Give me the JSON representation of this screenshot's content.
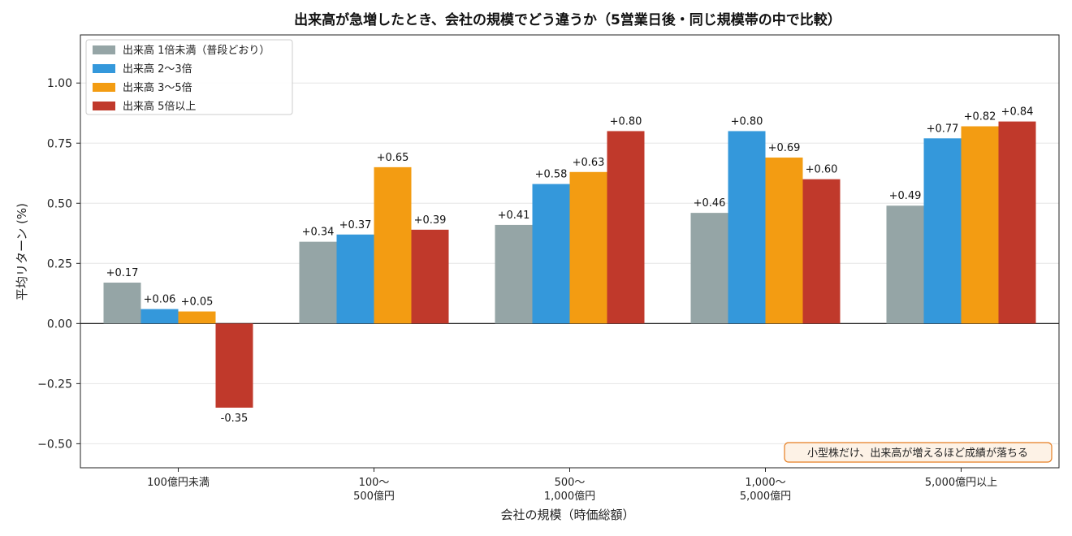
{
  "chart_data": {
    "type": "bar",
    "title": "出来高が急増したとき、会社の規模でどう違うか（5営業日後・同じ規模帯の中で比較）",
    "xlabel": "会社の規模（時価総額）",
    "ylabel": "平均リターン (%)",
    "ylim": [
      -0.6,
      1.2
    ],
    "yticks": [
      -0.5,
      -0.25,
      0.0,
      0.25,
      0.5,
      0.75,
      1.0
    ],
    "ytick_labels": [
      "−0.50",
      "−0.25",
      "0.00",
      "0.25",
      "0.50",
      "0.75",
      "1.00"
    ],
    "grid": "horizontal",
    "legend_position": "top-left",
    "categories": [
      [
        "100億円未満"
      ],
      [
        "100〜",
        "500億円"
      ],
      [
        "500〜",
        "1,000億円"
      ],
      [
        "1,000〜",
        "5,000億円"
      ],
      [
        "5,000億円以上"
      ]
    ],
    "series": [
      {
        "name": "出来高 1倍未満（普段どおり）",
        "color": "#95a5a6",
        "values": [
          0.17,
          0.34,
          0.41,
          0.46,
          0.49
        ],
        "labels": [
          "+0.17",
          "+0.34",
          "+0.41",
          "+0.46",
          "+0.49"
        ]
      },
      {
        "name": "出来高 2〜3倍",
        "color": "#3498db",
        "values": [
          0.06,
          0.37,
          0.58,
          0.8,
          0.77
        ],
        "labels": [
          "+0.06",
          "+0.37",
          "+0.58",
          "+0.80",
          "+0.77"
        ]
      },
      {
        "name": "出来高 3〜5倍",
        "color": "#f39c12",
        "values": [
          0.05,
          0.65,
          0.63,
          0.69,
          0.82
        ],
        "labels": [
          "+0.05",
          "+0.65",
          "+0.63",
          "+0.69",
          "+0.82"
        ]
      },
      {
        "name": "出来高 5倍以上",
        "color": "#c0392b",
        "values": [
          -0.35,
          0.39,
          0.8,
          0.6,
          0.84
        ],
        "labels": [
          "-0.35",
          "+0.39",
          "+0.80",
          "+0.60",
          "+0.84"
        ]
      }
    ],
    "annotation": "小型株だけ、出来高が増えるほど成績が落ちる",
    "annotation_colors": {
      "border": "#e67e22",
      "background": "#fdf2e6"
    }
  }
}
